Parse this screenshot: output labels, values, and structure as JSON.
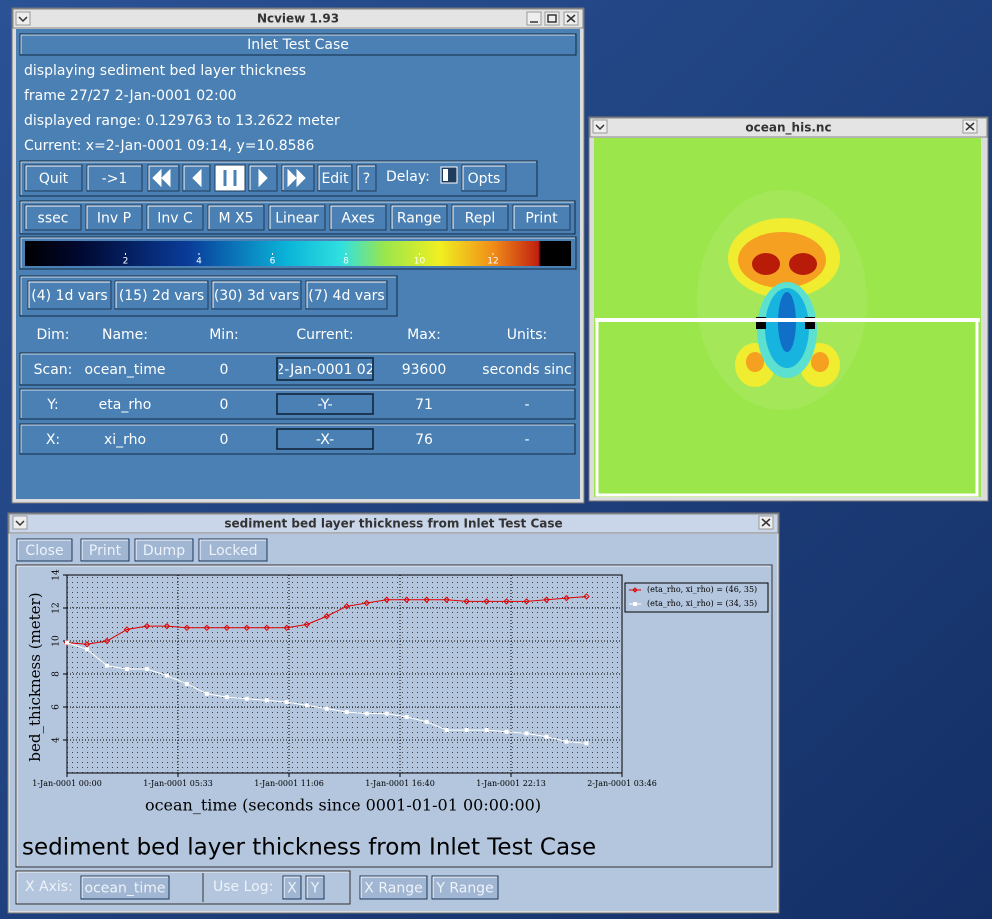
{
  "ncview": {
    "title": "Ncview 1.93",
    "case_title": "Inlet Test Case",
    "info": [
      "displaying sediment bed layer thickness",
      "frame 27/27 2-Jan-0001 02:00",
      "displayed range: 0.129763 to 13.2622 meter",
      "Current: x=2-Jan-0001 09:14, y=10.8586"
    ],
    "buttons": [
      "Quit",
      "->1",
      "Edit",
      "?",
      "Opts"
    ],
    "delay_label": "Delay:",
    "options": [
      "ssec",
      "Inv P",
      "Inv C",
      "M X5",
      "Linear",
      "Axes",
      "Range",
      "Repl",
      "Print"
    ],
    "colorbar_ticks": [
      2,
      4,
      6,
      8,
      10,
      12
    ],
    "var_buttons": [
      "(4) 1d vars",
      "(15) 2d vars",
      "(30) 3d vars",
      "(7) 4d vars"
    ],
    "dims": {
      "header": [
        "Dim:",
        "Name:",
        "Min:",
        "Current:",
        "Max:",
        "Units:"
      ],
      "rows": [
        [
          "Scan:",
          "ocean_time",
          0,
          "2-Jan-0001 02",
          93600,
          "seconds sinc"
        ],
        [
          "Y:",
          "eta_rho",
          0,
          "-Y-",
          71,
          "-"
        ],
        [
          "X:",
          "xi_rho",
          0,
          "-X-",
          76,
          "-"
        ]
      ]
    }
  },
  "image_window": {
    "title": "ocean_his.nc"
  },
  "plot_window": {
    "title": "sediment bed layer thickness from Inlet Test Case",
    "buttons": [
      "Close",
      "Print",
      "Dump",
      "Locked"
    ],
    "x_axis_label": "X Axis:",
    "x_axis_value": "ocean_time",
    "use_log_label": "Use Log:",
    "log_buttons": [
      "X",
      "Y"
    ],
    "range_buttons": [
      "X Range",
      "Y Range"
    ]
  },
  "chart_data": {
    "type": "line",
    "title": "sediment bed layer thickness from Inlet Test Case",
    "xlabel": "ocean_time (seconds since 0001-01-01 00:00:00)",
    "ylabel": "bed_thickness (meter)",
    "x": [
      0,
      3600,
      7200,
      10800,
      14400,
      18000,
      21600,
      25200,
      28800,
      32400,
      36000,
      39600,
      43200,
      46800,
      50400,
      54000,
      57600,
      61200,
      64800,
      68400,
      72000,
      75600,
      79200,
      82800,
      86400,
      90000,
      93600
    ],
    "xlim": [
      0,
      100000
    ],
    "xticks": [
      {
        "value": 0,
        "label": "1-Jan-0001 00:00"
      },
      {
        "value": 20000,
        "label": "1-Jan-0001 05:33"
      },
      {
        "value": 40000,
        "label": "1-Jan-0001 11:06"
      },
      {
        "value": 60000,
        "label": "1-Jan-0001 16:40"
      },
      {
        "value": 80000,
        "label": "1-Jan-0001 22:13"
      },
      {
        "value": 100000,
        "label": "2-Jan-0001 03:46"
      }
    ],
    "ylim": [
      2,
      14
    ],
    "yticks": [
      4,
      6,
      8,
      10,
      12,
      14
    ],
    "grid": true,
    "series": [
      {
        "name": "(eta_rho, xi_rho) = (46, 35)",
        "color": "#e00000",
        "values": [
          9.9,
          9.8,
          10.0,
          10.7,
          10.9,
          10.9,
          10.8,
          10.8,
          10.8,
          10.8,
          10.8,
          10.8,
          11.0,
          11.5,
          12.1,
          12.3,
          12.5,
          12.5,
          12.5,
          12.5,
          12.4,
          12.4,
          12.4,
          12.4,
          12.5,
          12.6,
          12.7
        ]
      },
      {
        "name": "(eta_rho, xi_rho) = (34, 35)",
        "color": "#ffffff",
        "values": [
          9.9,
          9.5,
          8.5,
          8.3,
          8.3,
          7.9,
          7.4,
          6.8,
          6.6,
          6.5,
          6.4,
          6.3,
          6.1,
          5.9,
          5.7,
          5.6,
          5.6,
          5.4,
          5.1,
          4.6,
          4.6,
          4.6,
          4.5,
          4.4,
          4.2,
          3.9,
          3.8
        ]
      }
    ]
  }
}
